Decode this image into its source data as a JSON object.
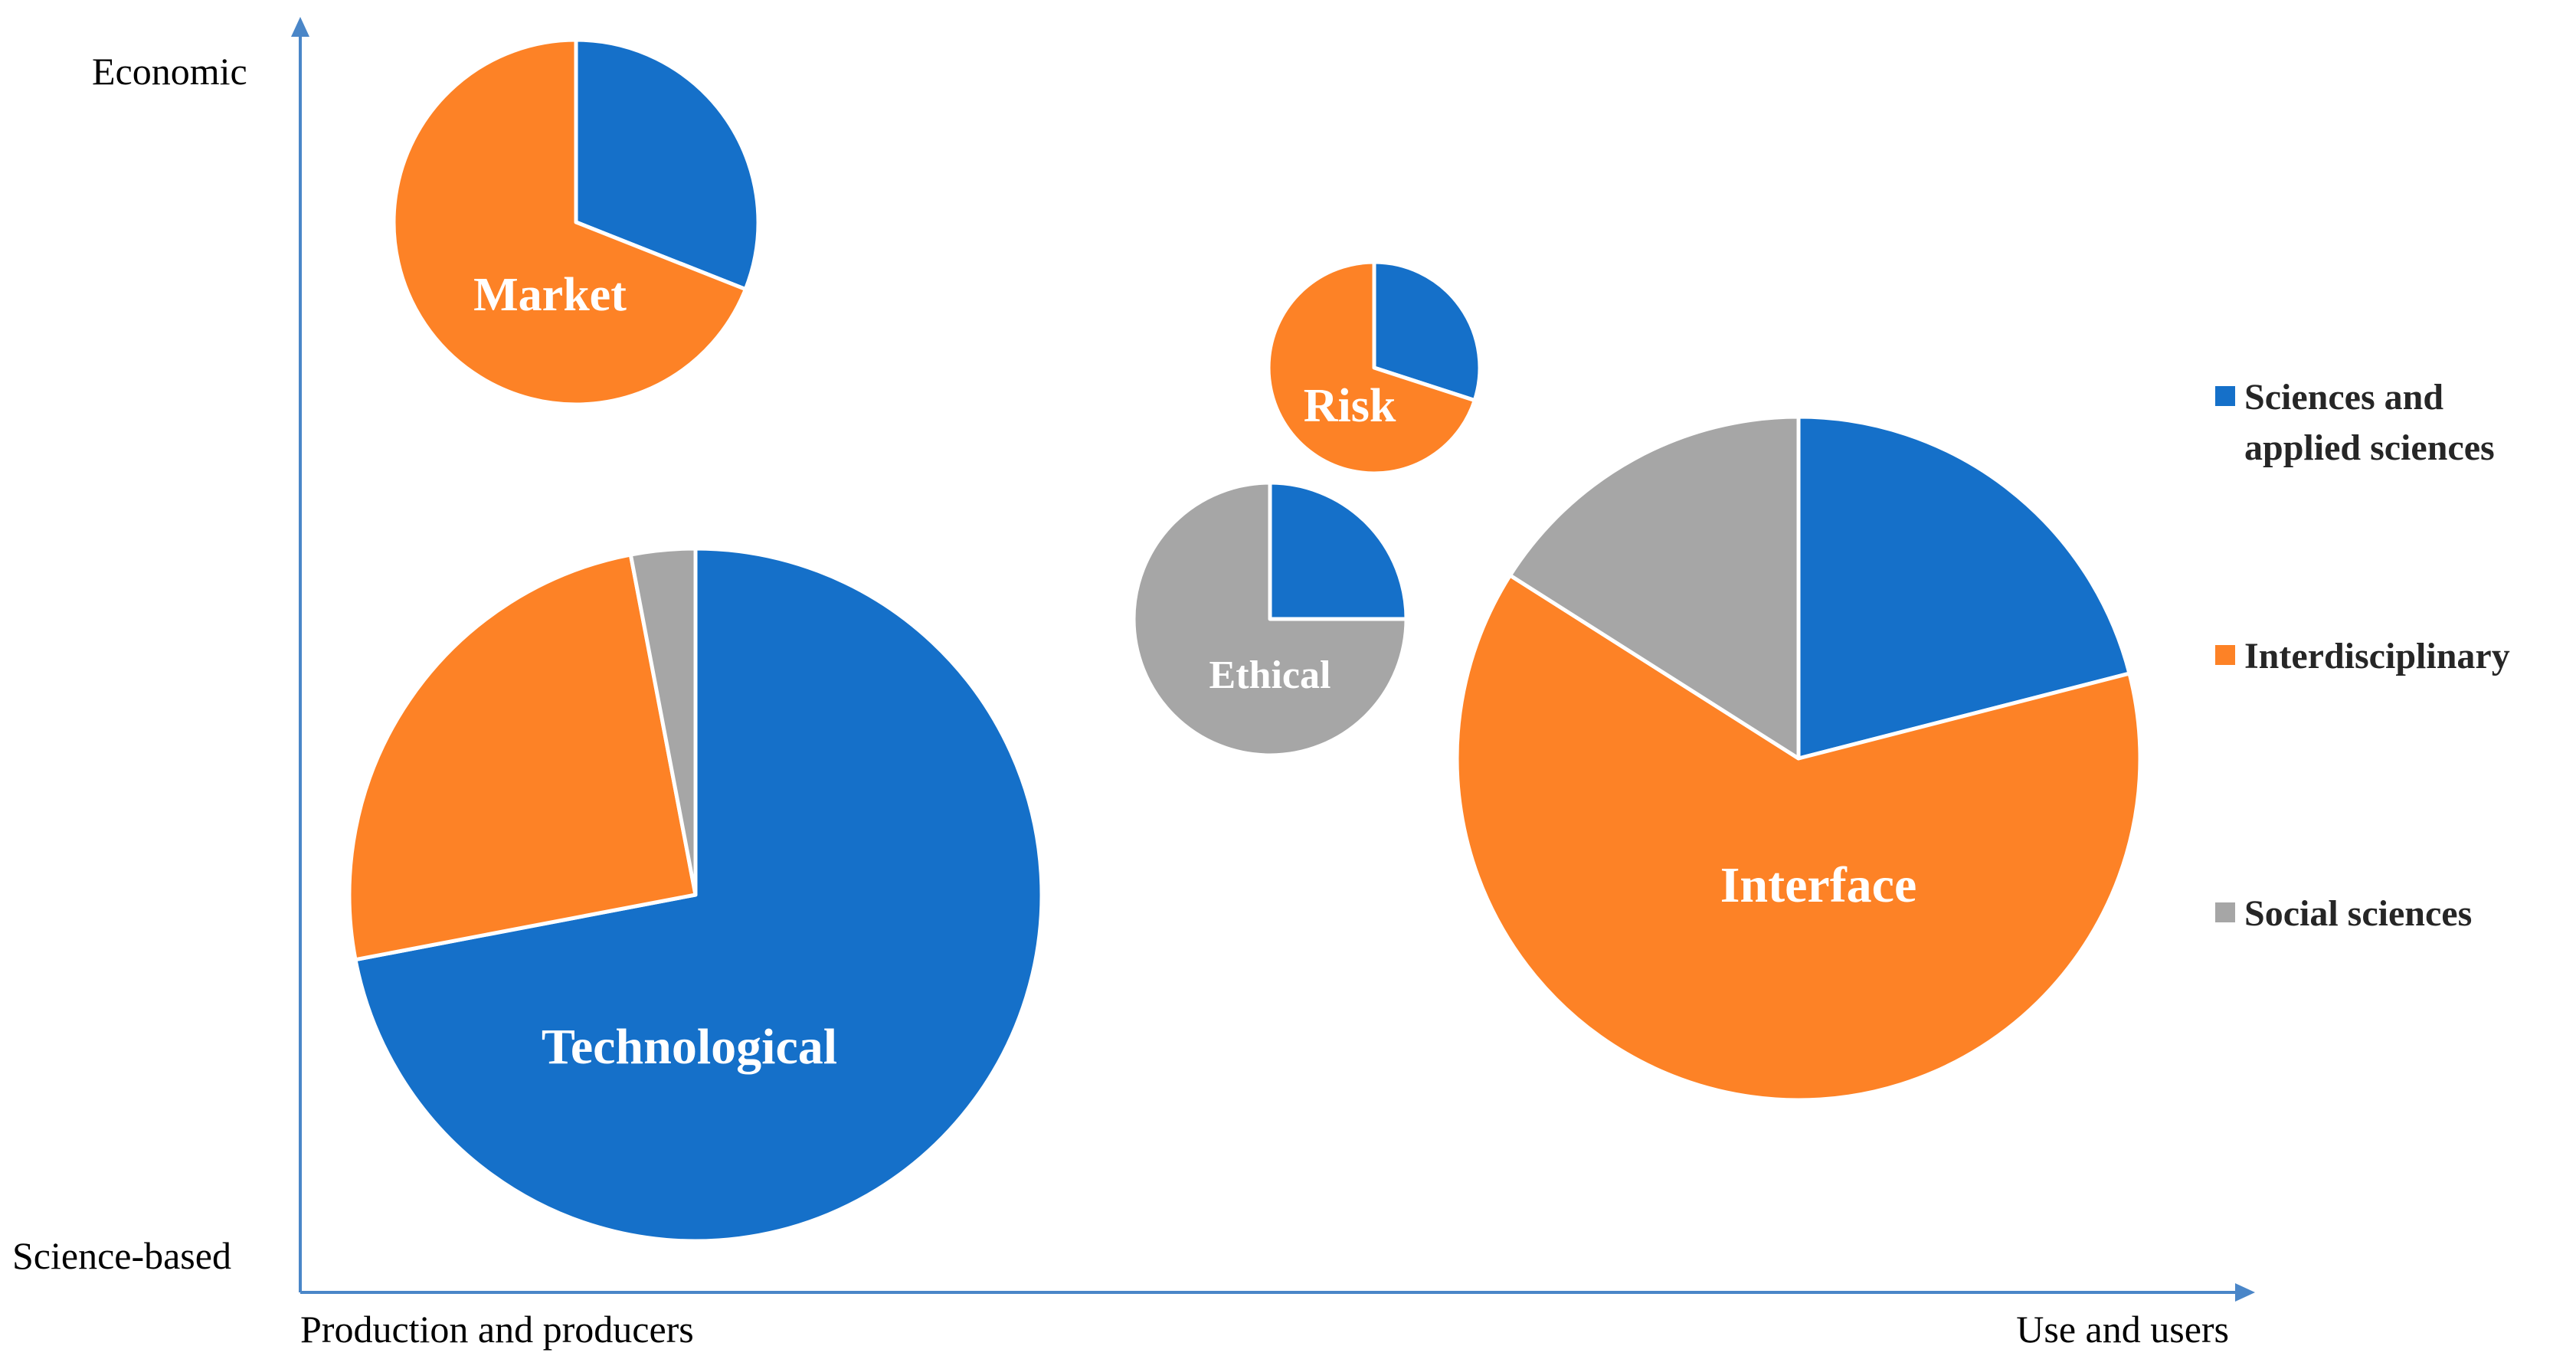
{
  "chart_data": {
    "type": "pie",
    "title": "",
    "axes": {
      "x": {
        "start_label": "Production and producers",
        "end_label": "Use and users"
      },
      "y": {
        "start_label": "Science-based",
        "end_label": "Economic"
      }
    },
    "legend": {
      "position": "right",
      "entries": [
        {
          "key": "sciences",
          "line1": "Sciences and",
          "line2": "applied sciences",
          "color": "#1570c9"
        },
        {
          "key": "interdisciplinary",
          "line1": "Interdisciplinary",
          "line2": "",
          "color": "#fd8226"
        },
        {
          "key": "social",
          "line1": "Social sciences",
          "line2": "",
          "color": "#a6a6a6"
        }
      ]
    },
    "categories": [
      "Sciences and applied sciences",
      "Interdisciplinary",
      "Social sciences"
    ],
    "pies": [
      {
        "label": "Market",
        "values": [
          31,
          69,
          0
        ]
      },
      {
        "label": "Risk",
        "values": [
          30,
          70,
          0
        ]
      },
      {
        "label": "Ethical",
        "values": [
          25,
          0,
          75
        ]
      },
      {
        "label": "Technological",
        "values": [
          72,
          25,
          3
        ]
      },
      {
        "label": "Interface",
        "values": [
          21,
          63,
          16
        ]
      }
    ]
  }
}
